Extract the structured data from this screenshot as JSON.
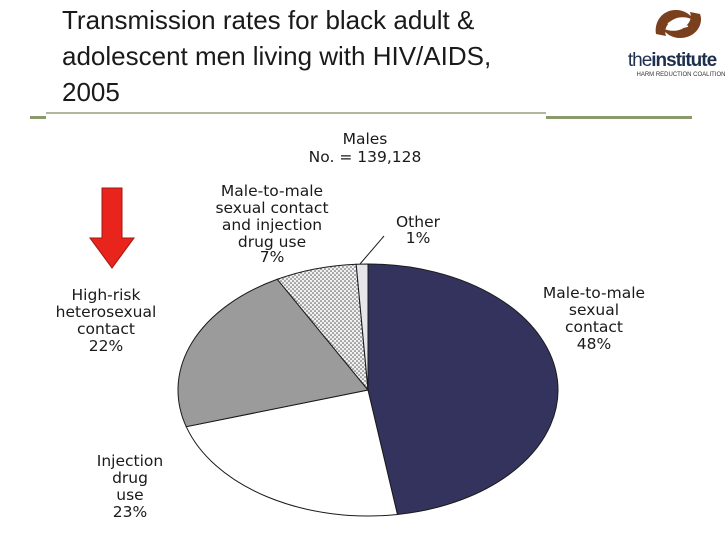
{
  "slide": {
    "title_lines": [
      "Transmission rates for black adult &",
      "adolescent men living with HIV/AIDS,",
      "2005"
    ]
  },
  "logo": {
    "text_light": "the",
    "text_bold": "institute",
    "subtitle": "HARM REDUCTION COALITION",
    "colors": {
      "brown": "#7a3f1c",
      "navy": "#1f2f4e"
    }
  },
  "chart_data": {
    "type": "pie",
    "title_lines": [
      "Males",
      "No. = 139,128"
    ],
    "slices": [
      {
        "label_lines": [
          "Male-to-male",
          "sexual",
          "contact"
        ],
        "percent_label": "48%",
        "value": 48,
        "color": "#33335e"
      },
      {
        "label_lines": [
          "Injection",
          "drug",
          "use"
        ],
        "percent_label": "23%",
        "value": 23,
        "color": "#ffffff"
      },
      {
        "label_lines": [
          "High-risk",
          "heterosexual",
          "contact"
        ],
        "percent_label": "22%",
        "value": 22,
        "color": "#9b9b9b"
      },
      {
        "label_lines": [
          "Male-to-male",
          "sexual contact",
          "and injection",
          "drug use"
        ],
        "percent_label": "7%",
        "value": 7,
        "color": "#dcdcdc",
        "pattern": "dots"
      },
      {
        "label_lines": [
          "Other"
        ],
        "percent_label": "1%",
        "value": 1,
        "color": "#e6e6ea"
      }
    ],
    "highlight_arrow": {
      "target": "High-risk heterosexual contact",
      "color": "#e8241c"
    }
  }
}
